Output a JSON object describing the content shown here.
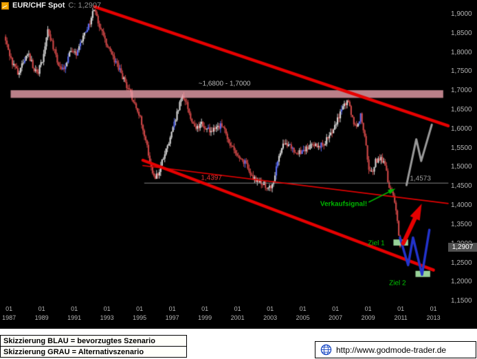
{
  "title_bar": {
    "symbol": "EUR/CHF Spot",
    "last": "C: 1,2907"
  },
  "footer": {
    "legend_blue": "Skizzierung BLAU = bevorzugtes Szenario",
    "legend_gray": "Skizzierung GRAU = Alternativszenario",
    "website": "http://www.godmode-trader.de"
  },
  "chart_data": {
    "type": "candlestick",
    "title": "EUR/CHF Spot monthly with descending channel and scenarios",
    "timeframe": "monthly",
    "last_price": 1.2907,
    "last_price_label": "1,2907",
    "x_axis": {
      "range": [
        1986.7,
        2013.9
      ],
      "month_tick_label": "01",
      "years": [
        1987,
        1989,
        1991,
        1993,
        1995,
        1997,
        1999,
        2001,
        2003,
        2005,
        2007,
        2009,
        2011,
        2013
      ]
    },
    "y_axis": {
      "range": [
        1.145,
        1.925
      ],
      "values": [
        1.9,
        1.85,
        1.8,
        1.75,
        1.7,
        1.65,
        1.6,
        1.55,
        1.5,
        1.45,
        1.4,
        1.35,
        1.3,
        1.25,
        1.2,
        1.15
      ],
      "labels": [
        "1,9000",
        "1,8500",
        "1,8000",
        "1,7500",
        "1,7000",
        "1,6500",
        "1,6000",
        "1,5500",
        "1,5000",
        "1,4500",
        "1,4000",
        "1,3500",
        "1,3000",
        "1,2500",
        "1,2000",
        "1,1500"
      ]
    },
    "series": {
      "start": 1986.75,
      "end": 2011.08,
      "months_per_candle": 1,
      "last_close": 1.2907,
      "anchors": [
        [
          1986.75,
          1.84
        ],
        [
          1987.0,
          1.805
        ],
        [
          1987.25,
          1.77
        ],
        [
          1987.6,
          1.742
        ],
        [
          1987.9,
          1.775
        ],
        [
          1988.2,
          1.8
        ],
        [
          1988.5,
          1.762
        ],
        [
          1988.8,
          1.747
        ],
        [
          1989.1,
          1.78
        ],
        [
          1989.4,
          1.862
        ],
        [
          1989.7,
          1.822
        ],
        [
          1990.0,
          1.772
        ],
        [
          1990.4,
          1.752
        ],
        [
          1990.8,
          1.812
        ],
        [
          1991.2,
          1.792
        ],
        [
          1991.6,
          1.842
        ],
        [
          1992.0,
          1.878
        ],
        [
          1992.25,
          1.918
        ],
        [
          1992.5,
          1.878
        ],
        [
          1992.8,
          1.846
        ],
        [
          1993.1,
          1.814
        ],
        [
          1993.5,
          1.78
        ],
        [
          1993.9,
          1.744
        ],
        [
          1994.3,
          1.706
        ],
        [
          1994.7,
          1.67
        ],
        [
          1995.0,
          1.638
        ],
        [
          1995.25,
          1.6
        ],
        [
          1995.5,
          1.55
        ],
        [
          1995.75,
          1.505
        ],
        [
          1995.95,
          1.468
        ],
        [
          1996.2,
          1.482
        ],
        [
          1996.5,
          1.524
        ],
        [
          1996.8,
          1.556
        ],
        [
          1997.1,
          1.6
        ],
        [
          1997.4,
          1.648
        ],
        [
          1997.7,
          1.688
        ],
        [
          1997.95,
          1.658
        ],
        [
          1998.25,
          1.622
        ],
        [
          1998.55,
          1.6
        ],
        [
          1998.85,
          1.612
        ],
        [
          1999.15,
          1.6
        ],
        [
          1999.5,
          1.594
        ],
        [
          1999.8,
          1.602
        ],
        [
          2000.1,
          1.608
        ],
        [
          2000.4,
          1.578
        ],
        [
          2000.7,
          1.55
        ],
        [
          2001.0,
          1.528
        ],
        [
          2001.3,
          1.52
        ],
        [
          2001.6,
          1.505
        ],
        [
          2001.85,
          1.476
        ],
        [
          2002.15,
          1.468
        ],
        [
          2002.5,
          1.458
        ],
        [
          2002.85,
          1.45
        ],
        [
          2003.1,
          1.444
        ],
        [
          2003.4,
          1.492
        ],
        [
          2003.7,
          1.546
        ],
        [
          2004.0,
          1.564
        ],
        [
          2004.35,
          1.548
        ],
        [
          2004.7,
          1.534
        ],
        [
          2005.0,
          1.542
        ],
        [
          2005.35,
          1.552
        ],
        [
          2005.7,
          1.556
        ],
        [
          2006.05,
          1.554
        ],
        [
          2006.4,
          1.566
        ],
        [
          2006.75,
          1.582
        ],
        [
          2007.1,
          1.618
        ],
        [
          2007.45,
          1.65
        ],
        [
          2007.85,
          1.678
        ],
        [
          2008.1,
          1.62
        ],
        [
          2008.35,
          1.608
        ],
        [
          2008.6,
          1.634
        ],
        [
          2008.85,
          1.574
        ],
        [
          2009.05,
          1.502
        ],
        [
          2009.25,
          1.484
        ],
        [
          2009.5,
          1.514
        ],
        [
          2009.8,
          1.52
        ],
        [
          2010.05,
          1.506
        ],
        [
          2010.3,
          1.455
        ],
        [
          2010.55,
          1.43
        ],
        [
          2010.75,
          1.39
        ],
        [
          2010.9,
          1.33
        ],
        [
          2011.0,
          1.262
        ],
        [
          2011.08,
          1.2907
        ]
      ]
    },
    "resistance_zone": {
      "from_price": 1.68,
      "to_price": 1.7,
      "from_year": 1987.1,
      "to_year": 2013.6
    },
    "channel": {
      "upper": {
        "from": [
          1992.25,
          1.918
        ],
        "to": [
          2013.9,
          1.607
        ]
      },
      "lower": {
        "from": [
          1995.2,
          1.517
        ],
        "to": [
          2013.0,
          1.23
        ]
      }
    },
    "support_line": {
      "from": [
        1995.2,
        1.503
      ],
      "to": [
        2013.9,
        1.404
      ],
      "value_label": "1,4397"
    },
    "gray_level": {
      "price": 1.4573,
      "from_year": 1995.3,
      "to_year": 2013.9,
      "value_label": "1,4573"
    },
    "blue_scenario": {
      "points": [
        [
          2010.95,
          1.315
        ],
        [
          2011.45,
          1.243
        ],
        [
          2011.75,
          1.315
        ],
        [
          2012.3,
          1.218
        ],
        [
          2012.75,
          1.335
        ]
      ]
    },
    "gray_scenario": {
      "points": [
        [
          2011.35,
          1.452
        ],
        [
          2011.95,
          1.572
        ],
        [
          2012.25,
          1.515
        ],
        [
          2012.9,
          1.61
        ]
      ]
    },
    "bounce_arrow": {
      "from": [
        2011.15,
        1.3
      ],
      "to": [
        2012.05,
        1.382
      ]
    },
    "sell_arrow": {
      "from": [
        2009.05,
        1.408
      ],
      "to": [
        2010.45,
        1.438
      ]
    },
    "targets": [
      {
        "label": "Ziel 1",
        "box": {
          "from": [
            2010.55,
            1.294
          ],
          "to": [
            2011.45,
            1.31
          ]
        }
      },
      {
        "label": "Ziel 2",
        "box": {
          "from": [
            2011.9,
            1.212
          ],
          "to": [
            2012.8,
            1.228
          ]
        }
      }
    ],
    "annotations": {
      "zone_label": {
        "label": "~1,6800 - 1,7000",
        "year": 2000.2,
        "price": 1.716
      },
      "level_4573": {
        "label": "1,4573",
        "year": 2012.2,
        "price": 1.468
      },
      "level_4397": {
        "label": "1,4397",
        "year": 1999.4,
        "price": 1.471
      },
      "sell_signal": {
        "label": "Verkaufsignal!",
        "year": 2007.5,
        "price": 1.402
      },
      "ziel1": {
        "label": "Ziel 1",
        "year": 2009.5,
        "price": 1.299
      },
      "ziel2": {
        "label": "Ziel 2",
        "year": 2010.8,
        "price": 1.196
      }
    },
    "colors": {
      "background": "#000000",
      "candle_up": "#d4d4d4",
      "candle_up_strong": "#5a6cf0",
      "candle_down": "#c94545",
      "trendline": "#e60000",
      "zone_fill": "rgba(238,164,176,0.78)",
      "blue_scenario": "#2233cc",
      "gray_scenario": "#9a9a9a",
      "signal_green": "#00b400",
      "target_box": "rgba(160,220,160,0.95)",
      "gray_line": "#8a8a8a"
    }
  }
}
